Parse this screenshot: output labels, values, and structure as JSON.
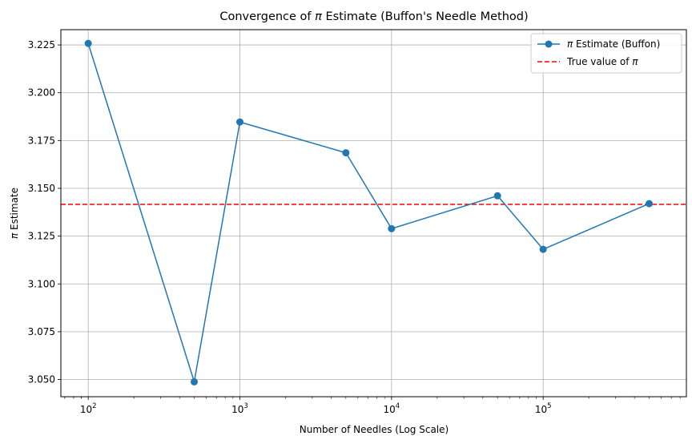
{
  "chart_data": {
    "type": "line",
    "title_prefix": "Convergence of ",
    "title_symbol": "π",
    "title_suffix": " Estimate (Buffon's Needle Method)",
    "xlabel": "Number of Needles (Log Scale)",
    "ylabel_symbol": "π",
    "ylabel_suffix": " Estimate",
    "x_scale": "log",
    "xlim": [
      66,
      880000
    ],
    "ylim": [
      3.041,
      3.233
    ],
    "grid": true,
    "legend_position": "top-right",
    "x_major_ticks": [
      {
        "value": 100,
        "base": "10",
        "exp": "2"
      },
      {
        "value": 1000,
        "base": "10",
        "exp": "3"
      },
      {
        "value": 10000,
        "base": "10",
        "exp": "4"
      },
      {
        "value": 100000,
        "base": "10",
        "exp": "5"
      }
    ],
    "y_ticks": [
      {
        "value": 3.05,
        "label": "3.050"
      },
      {
        "value": 3.075,
        "label": "3.075"
      },
      {
        "value": 3.1,
        "label": "3.100"
      },
      {
        "value": 3.125,
        "label": "3.125"
      },
      {
        "value": 3.15,
        "label": "3.150"
      },
      {
        "value": 3.175,
        "label": "3.175"
      },
      {
        "value": 3.2,
        "label": "3.200"
      },
      {
        "value": 3.225,
        "label": "3.225"
      }
    ],
    "series": [
      {
        "name_symbol": "π",
        "name_suffix": " Estimate (Buffon)",
        "color": "#1f77b4",
        "marker": "circle",
        "x": [
          100,
          500,
          1000,
          5000,
          10000,
          50000,
          100000,
          500000
        ],
        "y": [
          3.2258,
          3.0488,
          3.1847,
          3.1686,
          3.1289,
          3.1461,
          3.1181,
          3.142
        ]
      }
    ],
    "reference_line": {
      "name_prefix": "True value of ",
      "name_symbol": "π",
      "value": 3.14159,
      "color": "#ff0000",
      "style": "dashed"
    }
  }
}
